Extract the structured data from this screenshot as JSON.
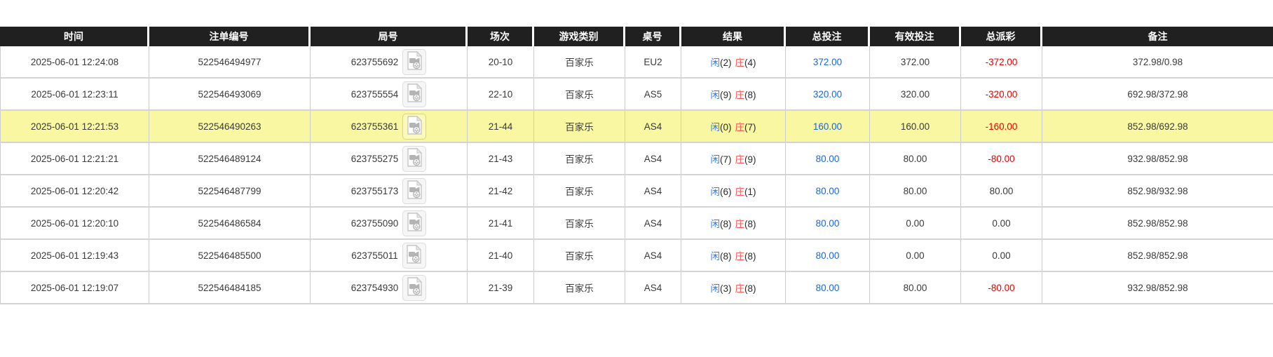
{
  "colors": {
    "header_bg": "#202020",
    "header_text": "#ffffff",
    "highlight_row_bg": "#faf7a3",
    "player_blue": "#2e7bff",
    "banker_red": "#ff5252",
    "bet_amount_blue": "#1766dd",
    "negative_red": "#e60000",
    "body_text": "#3a3a3a",
    "grid_border": "#cccccc"
  },
  "table": {
    "columns": [
      {
        "key": "time",
        "label": "时间"
      },
      {
        "key": "bet_id",
        "label": "注单编号"
      },
      {
        "key": "round",
        "label": "局号"
      },
      {
        "key": "session",
        "label": "场次"
      },
      {
        "key": "game_type",
        "label": "游戏类别"
      },
      {
        "key": "table_no",
        "label": "桌号"
      },
      {
        "key": "result",
        "label": "结果"
      },
      {
        "key": "total_bet",
        "label": "总投注"
      },
      {
        "key": "valid_bet",
        "label": "有效投注"
      },
      {
        "key": "payout",
        "label": "总派彩"
      },
      {
        "key": "remark",
        "label": "备注"
      }
    ],
    "rows": [
      {
        "time": "2025-06-01 12:24:08",
        "bet_id": "522546494977",
        "round": "623755692",
        "session": "20-10",
        "game_type": "百家乐",
        "table_no": "EU2",
        "result": {
          "player_label": "闲",
          "player_score": "(2)",
          "banker_label": "庄",
          "banker_score": "(4)"
        },
        "total_bet": "372.00",
        "valid_bet": "372.00",
        "payout": "-372.00",
        "remark": "372.98/0.98",
        "highlighted": false
      },
      {
        "time": "2025-06-01 12:23:11",
        "bet_id": "522546493069",
        "round": "623755554",
        "session": "22-10",
        "game_type": "百家乐",
        "table_no": "AS5",
        "result": {
          "player_label": "闲",
          "player_score": "(9)",
          "banker_label": "庄",
          "banker_score": "(8)"
        },
        "total_bet": "320.00",
        "valid_bet": "320.00",
        "payout": "-320.00",
        "remark": "692.98/372.98",
        "highlighted": false
      },
      {
        "time": "2025-06-01 12:21:53",
        "bet_id": "522546490263",
        "round": "623755361",
        "session": "21-44",
        "game_type": "百家乐",
        "table_no": "AS4",
        "result": {
          "player_label": "闲",
          "player_score": "(0)",
          "banker_label": "庄",
          "banker_score": "(7)"
        },
        "total_bet": "160.00",
        "valid_bet": "160.00",
        "payout": "-160.00",
        "remark": "852.98/692.98",
        "highlighted": true
      },
      {
        "time": "2025-06-01 12:21:21",
        "bet_id": "522546489124",
        "round": "623755275",
        "session": "21-43",
        "game_type": "百家乐",
        "table_no": "AS4",
        "result": {
          "player_label": "闲",
          "player_score": "(7)",
          "banker_label": "庄",
          "banker_score": "(9)"
        },
        "total_bet": "80.00",
        "valid_bet": "80.00",
        "payout": "-80.00",
        "remark": "932.98/852.98",
        "highlighted": false
      },
      {
        "time": "2025-06-01 12:20:42",
        "bet_id": "522546487799",
        "round": "623755173",
        "session": "21-42",
        "game_type": "百家乐",
        "table_no": "AS4",
        "result": {
          "player_label": "闲",
          "player_score": "(6)",
          "banker_label": "庄",
          "banker_score": "(1)"
        },
        "total_bet": "80.00",
        "valid_bet": "80.00",
        "payout": "80.00",
        "remark": "852.98/932.98",
        "highlighted": false
      },
      {
        "time": "2025-06-01 12:20:10",
        "bet_id": "522546486584",
        "round": "623755090",
        "session": "21-41",
        "game_type": "百家乐",
        "table_no": "AS4",
        "result": {
          "player_label": "闲",
          "player_score": "(8)",
          "banker_label": "庄",
          "banker_score": "(8)"
        },
        "total_bet": "80.00",
        "valid_bet": "0.00",
        "payout": "0.00",
        "remark": "852.98/852.98",
        "highlighted": false
      },
      {
        "time": "2025-06-01 12:19:43",
        "bet_id": "522546485500",
        "round": "623755011",
        "session": "21-40",
        "game_type": "百家乐",
        "table_no": "AS4",
        "result": {
          "player_label": "闲",
          "player_score": "(8)",
          "banker_label": "庄",
          "banker_score": "(8)"
        },
        "total_bet": "80.00",
        "valid_bet": "0.00",
        "payout": "0.00",
        "remark": "852.98/852.98",
        "highlighted": false
      },
      {
        "time": "2025-06-01 12:19:07",
        "bet_id": "522546484185",
        "round": "623754930",
        "session": "21-39",
        "game_type": "百家乐",
        "table_no": "AS4",
        "result": {
          "player_label": "闲",
          "player_score": "(3)",
          "banker_label": "庄",
          "banker_score": "(8)"
        },
        "total_bet": "80.00",
        "valid_bet": "80.00",
        "payout": "-80.00",
        "remark": "932.98/852.98",
        "highlighted": false
      }
    ]
  }
}
